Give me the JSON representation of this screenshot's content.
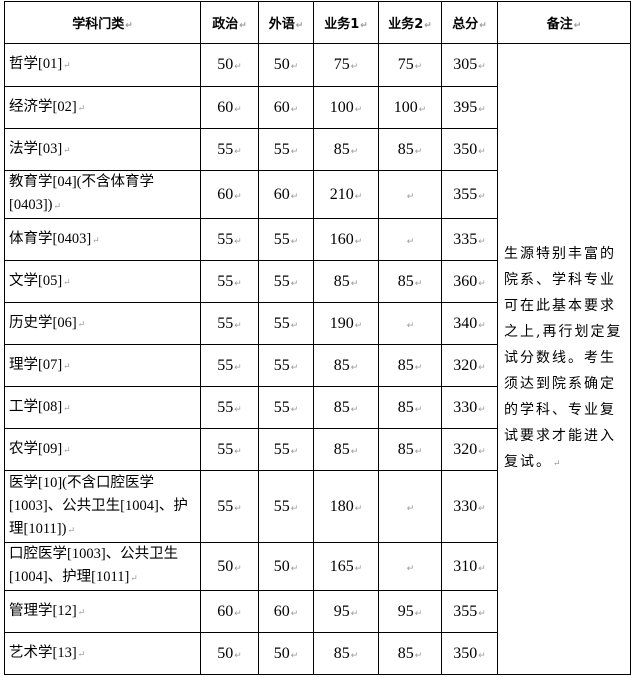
{
  "headers": [
    "学科门类",
    "政治",
    "外语",
    "业务1",
    "业务2",
    "总分",
    "备注"
  ],
  "rows": [
    {
      "name": "哲学[01]",
      "politics": "50",
      "language": "50",
      "subject1": "75",
      "subject2": "75",
      "total": "305"
    },
    {
      "name": "经济学[02]",
      "politics": "60",
      "language": "60",
      "subject1": "100",
      "subject2": "100",
      "total": "395"
    },
    {
      "name": "法学[03]",
      "politics": "55",
      "language": "55",
      "subject1": "85",
      "subject2": "85",
      "total": "350"
    },
    {
      "name": "教育学[04](不含体育学[0403])",
      "politics": "60",
      "language": "60",
      "subject1": "210",
      "subject2": "",
      "total": "355"
    },
    {
      "name": "体育学[0403]",
      "politics": "55",
      "language": "55",
      "subject1": "160",
      "subject2": "",
      "total": "335"
    },
    {
      "name": "文学[05]",
      "politics": "55",
      "language": "55",
      "subject1": "85",
      "subject2": "85",
      "total": "360"
    },
    {
      "name": "历史学[06]",
      "politics": "55",
      "language": "55",
      "subject1": "190",
      "subject2": "",
      "total": "340"
    },
    {
      "name": "理学[07]",
      "politics": "55",
      "language": "55",
      "subject1": "85",
      "subject2": "85",
      "total": "320"
    },
    {
      "name": "工学[08]",
      "politics": "55",
      "language": "55",
      "subject1": "85",
      "subject2": "85",
      "total": "330"
    },
    {
      "name": "农学[09]",
      "politics": "55",
      "language": "55",
      "subject1": "85",
      "subject2": "85",
      "total": "320"
    },
    {
      "name": "医学[10](不含口腔医学[1003]、公共卫生[1004]、护理[1011])",
      "politics": "55",
      "language": "55",
      "subject1": "180",
      "subject2": "",
      "total": "330"
    },
    {
      "name": "口腔医学[1003]、公共卫生[1004]、护理[1011]",
      "politics": "50",
      "language": "50",
      "subject1": "165",
      "subject2": "",
      "total": "310"
    },
    {
      "name": "管理学[12]",
      "politics": "60",
      "language": "60",
      "subject1": "95",
      "subject2": "95",
      "total": "355"
    },
    {
      "name": "艺术学[13]",
      "politics": "50",
      "language": "50",
      "subject1": "85",
      "subject2": "85",
      "total": "350"
    }
  ],
  "note": "生源特别丰富的院系、学科专业可在此基本要求之上,再行划定复试分数线。考生须达到院系确定的学科、专业复试要求才能进入复试。"
}
